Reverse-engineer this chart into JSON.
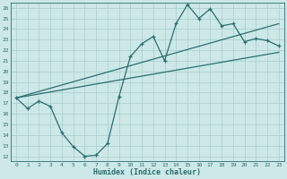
{
  "xlabel": "Humidex (Indice chaleur)",
  "ylabel": "",
  "bg_color": "#cce8e8",
  "line_color": "#2d6e6e",
  "grid_color": "#aacccc",
  "xlim": [
    -0.5,
    23.5
  ],
  "ylim": [
    11.5,
    26.5
  ],
  "xticks": [
    0,
    1,
    2,
    3,
    4,
    5,
    6,
    7,
    8,
    9,
    10,
    11,
    12,
    13,
    14,
    15,
    16,
    17,
    18,
    19,
    20,
    21,
    22,
    23
  ],
  "yticks": [
    12,
    13,
    14,
    15,
    16,
    17,
    18,
    19,
    20,
    21,
    22,
    23,
    24,
    25,
    26
  ],
  "line1_x": [
    0,
    1,
    2,
    3,
    4,
    5,
    6,
    7,
    8,
    9,
    10,
    11,
    12,
    13,
    14,
    15,
    16,
    17,
    18,
    19,
    20,
    21,
    22,
    23
  ],
  "line1_y": [
    17.5,
    16.5,
    17.2,
    16.7,
    14.2,
    12.9,
    12.0,
    12.1,
    13.2,
    17.6,
    21.4,
    22.6,
    23.3,
    21.0,
    24.5,
    26.3,
    25.0,
    25.9,
    24.3,
    24.5,
    22.8,
    23.1,
    22.9,
    22.4
  ],
  "line2_x": [
    0,
    23
  ],
  "line2_y": [
    17.5,
    21.8
  ],
  "line3_x": [
    0,
    23
  ],
  "line3_y": [
    17.5,
    24.5
  ]
}
